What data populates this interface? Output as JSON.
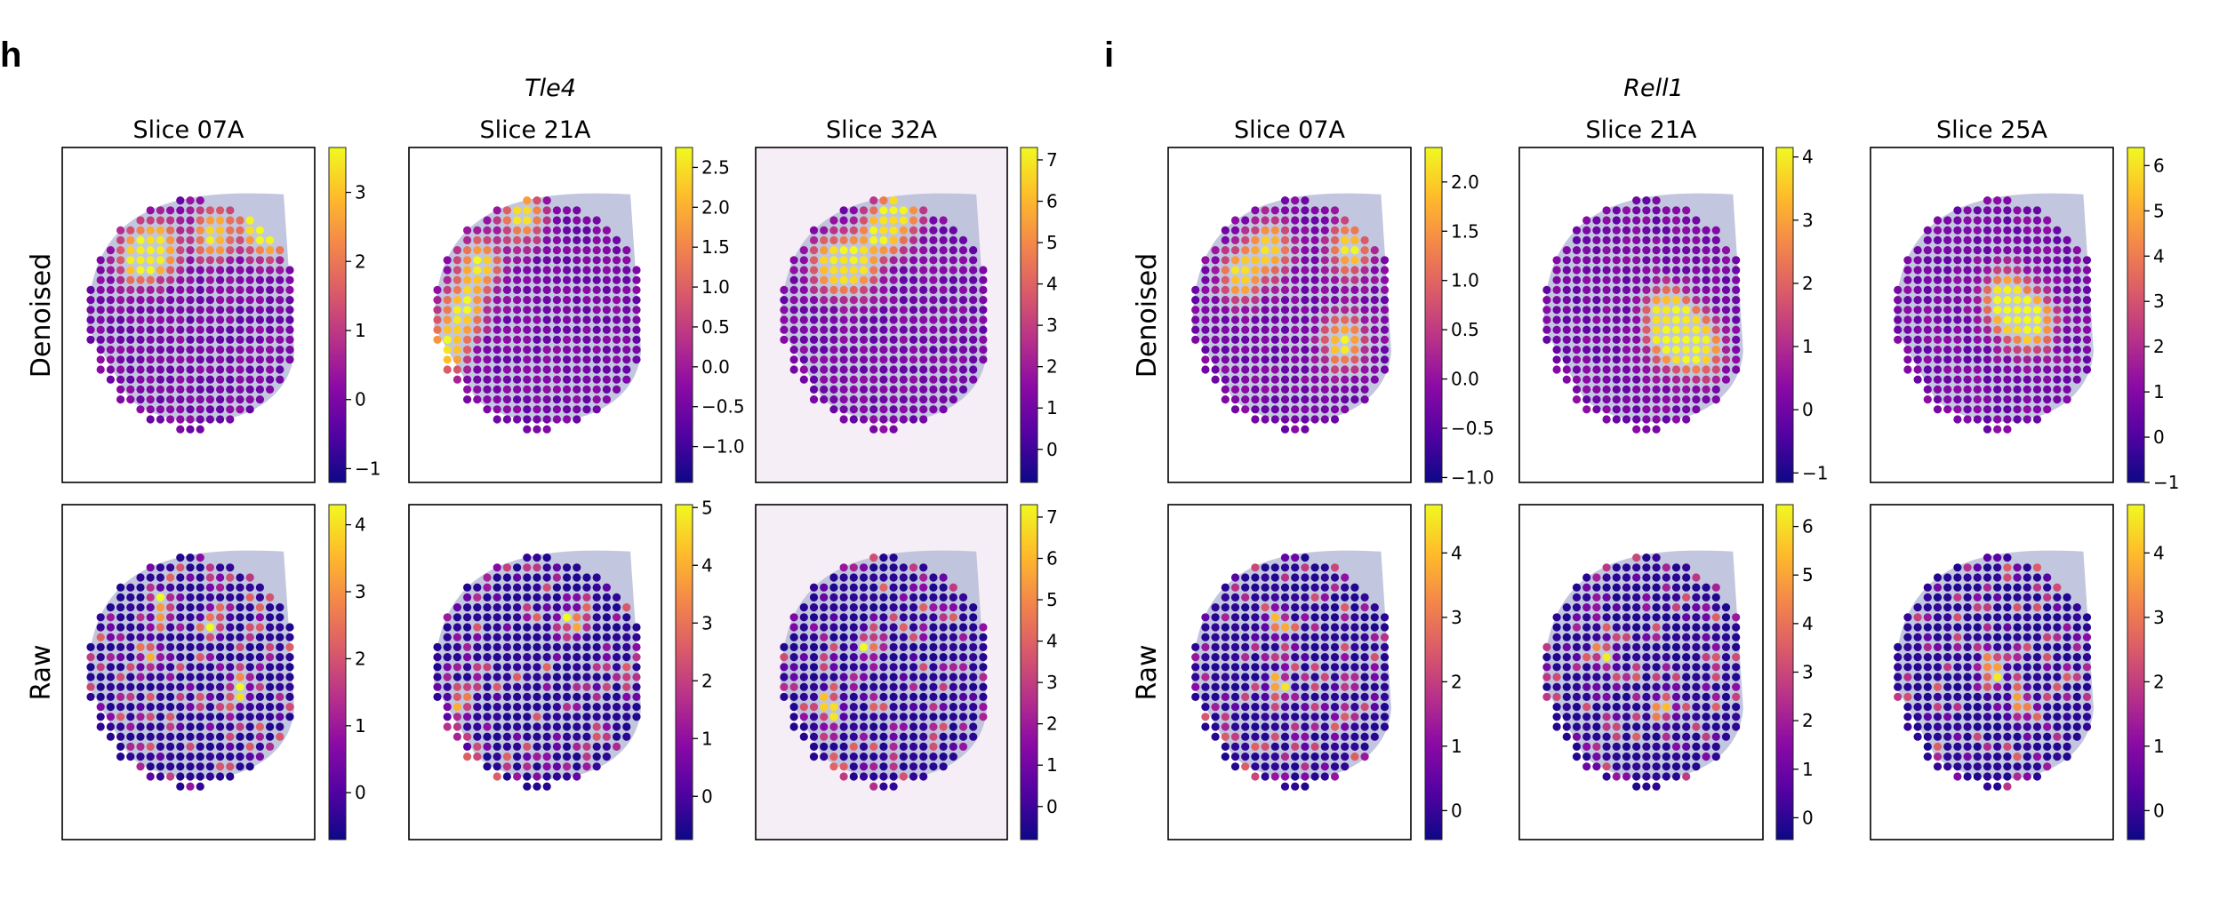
{
  "figure": {
    "panels": [
      {
        "letter": "h",
        "gene": "Tle4",
        "slices": [
          "Slice 07A",
          "Slice 21A",
          "Slice 32A"
        ]
      },
      {
        "letter": "i",
        "gene": "Rell1",
        "slices": [
          "Slice 07A",
          "Slice 21A",
          "Slice 25A"
        ]
      }
    ],
    "row_labels": [
      "Denoised",
      "Raw"
    ],
    "colormap": "plasma",
    "colormap_stops": [
      "#0d0887",
      "#5302a3",
      "#8b0aa5",
      "#b83289",
      "#db5c68",
      "#f48849",
      "#febd2a",
      "#f0f921"
    ],
    "spot_background": "#c9cde3",
    "tissue_color": "#b7bcd8"
  },
  "chart_data": [
    {
      "type": "heatmap",
      "panel": "h",
      "gene": "Tle4",
      "row": "Denoised",
      "title": "Slice 07A",
      "colorbar": {
        "range": [
          -1.2,
          3.65
        ],
        "ticks": [
          -1,
          0,
          1,
          2,
          3
        ],
        "tick_labels": [
          "−1",
          "0",
          "1",
          "2",
          "3"
        ]
      },
      "description": "Spatial spot expression; high band along cortex arc (max ~3.6)",
      "hotspots": [
        [
          0.78,
          0.2
        ],
        [
          0.82,
          0.25
        ],
        [
          0.3,
          0.33
        ],
        [
          0.38,
          0.3
        ],
        [
          0.6,
          0.26
        ]
      ]
    },
    {
      "type": "heatmap",
      "panel": "h",
      "gene": "Tle4",
      "row": "Denoised",
      "title": "Slice 21A",
      "colorbar": {
        "range": [
          -1.45,
          2.75
        ],
        "ticks": [
          -1.0,
          -0.5,
          0.0,
          0.5,
          1.0,
          1.5,
          2.0,
          2.5
        ],
        "tick_labels": [
          "−1.0",
          "−0.5",
          "0.0",
          "0.5",
          "1.0",
          "1.5",
          "2.0",
          "2.5"
        ]
      },
      "hotspots": [
        [
          0.28,
          0.35
        ],
        [
          0.22,
          0.48
        ],
        [
          0.45,
          0.2
        ],
        [
          0.15,
          0.6
        ]
      ]
    },
    {
      "type": "heatmap",
      "panel": "h",
      "gene": "Tle4",
      "row": "Denoised",
      "title": "Slice 32A",
      "colorbar": {
        "range": [
          -0.8,
          7.3
        ],
        "ticks": [
          0,
          1,
          2,
          3,
          4,
          5,
          6,
          7
        ],
        "tick_labels": [
          "0",
          "1",
          "2",
          "3",
          "4",
          "5",
          "6",
          "7"
        ]
      },
      "hotspots": [
        [
          0.3,
          0.35
        ],
        [
          0.4,
          0.35
        ],
        [
          0.5,
          0.25
        ],
        [
          0.58,
          0.18
        ]
      ]
    },
    {
      "type": "heatmap",
      "panel": "h",
      "gene": "Tle4",
      "row": "Raw",
      "title": "Slice 07A",
      "colorbar": {
        "range": [
          -0.7,
          4.3
        ],
        "ticks": [
          0,
          1,
          2,
          3,
          4
        ],
        "tick_labels": [
          "0",
          "1",
          "2",
          "3",
          "4"
        ]
      },
      "hotspots": [
        [
          0.4,
          0.3
        ],
        [
          0.35,
          0.45
        ],
        [
          0.6,
          0.35
        ],
        [
          0.7,
          0.55
        ]
      ]
    },
    {
      "type": "heatmap",
      "panel": "h",
      "gene": "Tle4",
      "row": "Raw",
      "title": "Slice 21A",
      "colorbar": {
        "range": [
          -0.75,
          5.05
        ],
        "ticks": [
          0,
          1,
          2,
          3,
          4,
          5
        ],
        "tick_labels": [
          "0",
          "1",
          "2",
          "3",
          "4",
          "5"
        ]
      },
      "hotspots": [
        [
          0.2,
          0.6
        ],
        [
          0.65,
          0.35
        ]
      ]
    },
    {
      "type": "heatmap",
      "panel": "h",
      "gene": "Tle4",
      "row": "Raw",
      "title": "Slice 32A",
      "colorbar": {
        "range": [
          -0.8,
          7.3
        ],
        "ticks": [
          0,
          1,
          2,
          3,
          4,
          5,
          6,
          7
        ],
        "tick_labels": [
          "0",
          "1",
          "2",
          "3",
          "4",
          "5",
          "6",
          "7"
        ]
      },
      "hotspots": [
        [
          0.45,
          0.42
        ],
        [
          0.3,
          0.6
        ]
      ]
    },
    {
      "type": "heatmap",
      "panel": "i",
      "gene": "Rell1",
      "row": "Denoised",
      "title": "Slice 07A",
      "colorbar": {
        "range": [
          -1.05,
          2.35
        ],
        "ticks": [
          -1.0,
          -0.5,
          0.0,
          0.5,
          1.0,
          1.5,
          2.0
        ],
        "tick_labels": [
          "−1.0",
          "−0.5",
          "0.0",
          "0.5",
          "1.0",
          "1.5",
          "2.0"
        ]
      },
      "hotspots": [
        [
          0.3,
          0.38
        ],
        [
          0.42,
          0.3
        ],
        [
          0.75,
          0.3
        ],
        [
          0.72,
          0.58
        ]
      ]
    },
    {
      "type": "heatmap",
      "panel": "i",
      "gene": "Rell1",
      "row": "Denoised",
      "title": "Slice 21A",
      "colorbar": {
        "range": [
          -1.15,
          4.15
        ],
        "ticks": [
          -1,
          0,
          1,
          2,
          3,
          4
        ],
        "tick_labels": [
          "−1",
          "0",
          "1",
          "2",
          "3",
          "4"
        ]
      },
      "hotspots": [
        [
          0.6,
          0.5
        ],
        [
          0.68,
          0.55
        ],
        [
          0.75,
          0.6
        ],
        [
          0.62,
          0.57
        ]
      ]
    },
    {
      "type": "heatmap",
      "panel": "i",
      "gene": "Rell1",
      "row": "Denoised",
      "title": "Slice 25A",
      "colorbar": {
        "range": [
          -1.0,
          6.4
        ],
        "ticks": [
          -1,
          0,
          1,
          2,
          3,
          4,
          5,
          6
        ],
        "tick_labels": [
          "−1",
          "0",
          "1",
          "2",
          "3",
          "4",
          "5",
          "6"
        ]
      },
      "hotspots": [
        [
          0.55,
          0.45
        ],
        [
          0.6,
          0.5
        ],
        [
          0.68,
          0.52
        ]
      ]
    },
    {
      "type": "heatmap",
      "panel": "i",
      "gene": "Rell1",
      "row": "Raw",
      "title": "Slice 07A",
      "colorbar": {
        "range": [
          -0.45,
          4.75
        ],
        "ticks": [
          0,
          1,
          2,
          3,
          4
        ],
        "tick_labels": [
          "0",
          "1",
          "2",
          "3",
          "4"
        ]
      },
      "hotspots": [
        [
          0.45,
          0.55
        ],
        [
          0.45,
          0.35
        ],
        [
          0.05,
          0.65
        ]
      ]
    },
    {
      "type": "heatmap",
      "panel": "i",
      "gene": "Rell1",
      "row": "Raw",
      "title": "Slice 21A",
      "colorbar": {
        "range": [
          -0.45,
          6.45
        ],
        "ticks": [
          0,
          1,
          2,
          3,
          4,
          5,
          6
        ],
        "tick_labels": [
          "0",
          "1",
          "2",
          "3",
          "4",
          "5",
          "6"
        ]
      },
      "hotspots": [
        [
          0.35,
          0.45
        ],
        [
          0.6,
          0.6
        ]
      ]
    },
    {
      "type": "heatmap",
      "panel": "i",
      "gene": "Rell1",
      "row": "Raw",
      "title": "Slice 25A",
      "colorbar": {
        "range": [
          -0.45,
          4.75
        ],
        "ticks": [
          0,
          1,
          2,
          3,
          4
        ],
        "tick_labels": [
          "0",
          "1",
          "2",
          "3",
          "4"
        ]
      },
      "hotspots": [
        [
          0.62,
          0.6
        ],
        [
          0.5,
          0.5
        ]
      ]
    }
  ]
}
